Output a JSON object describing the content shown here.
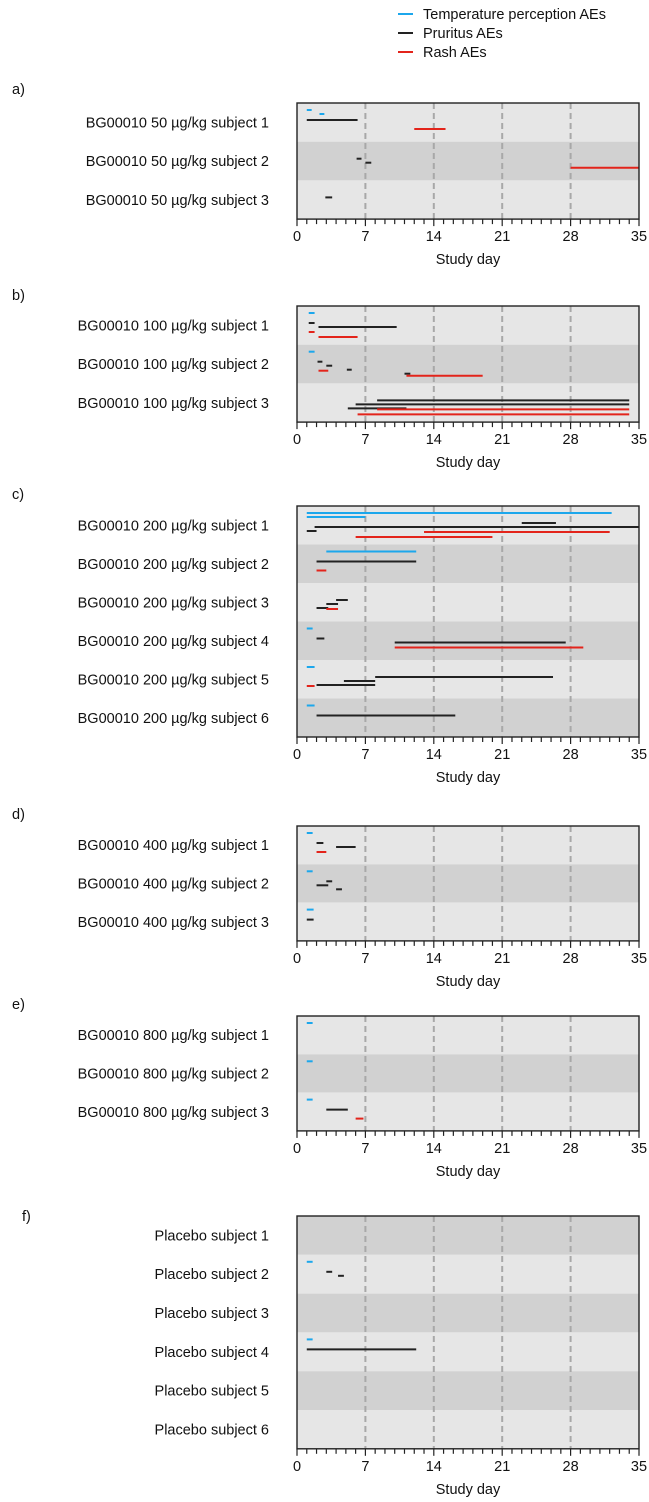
{
  "colors": {
    "temperature": "#1ca7ec",
    "pruritus": "#222222",
    "rash": "#e3241b",
    "band_light": "#e6e6e6",
    "band_dark": "#d1d1d1",
    "grid": "#a8a8a8"
  },
  "chart_data": {
    "type": "timeline",
    "legend": {
      "placement": "top-right",
      "entries": [
        {
          "key": "temperature",
          "label": "Temperature perception AEs"
        },
        {
          "key": "pruritus",
          "label": "Pruritus AEs"
        },
        {
          "key": "rash",
          "label": "Rash AEs"
        }
      ]
    },
    "xlim": [
      0,
      35
    ],
    "xticks": [
      0,
      7,
      14,
      21,
      28,
      35
    ],
    "dashed_gridlines": [
      7,
      14,
      21,
      28
    ],
    "panels": [
      {
        "label": "a)",
        "xlabel": "Study day",
        "subjects": [
          {
            "name": "BG00010 50 µg/kg subject 1",
            "events": [
              {
                "type": "temperature",
                "start": 1.0,
                "end": 1.5
              },
              {
                "type": "temperature",
                "start": 2.3,
                "end": 2.8
              },
              {
                "type": "pruritus",
                "start": 1.0,
                "end": 6.2
              },
              {
                "type": "rash",
                "start": 12.0,
                "end": 15.2
              }
            ]
          },
          {
            "name": "BG00010 50 µg/kg subject 2",
            "events": [
              {
                "type": "pruritus",
                "start": 6.1,
                "end": 6.6
              },
              {
                "type": "pruritus",
                "start": 7.0,
                "end": 7.6
              },
              {
                "type": "rash",
                "start": 28.0,
                "end": 35.0
              }
            ]
          },
          {
            "name": "BG00010 50 µg/kg subject 3",
            "events": [
              {
                "type": "pruritus",
                "start": 2.9,
                "end": 3.6
              }
            ]
          }
        ]
      },
      {
        "label": "b)",
        "xlabel": "Study day",
        "subjects": [
          {
            "name": "BG00010 100 µg/kg subject 1",
            "events": [
              {
                "type": "temperature",
                "start": 1.2,
                "end": 1.8
              },
              {
                "type": "pruritus",
                "start": 1.2,
                "end": 1.8
              },
              {
                "type": "pruritus",
                "start": 2.2,
                "end": 10.2
              },
              {
                "type": "rash",
                "start": 1.2,
                "end": 1.8
              },
              {
                "type": "rash",
                "start": 2.2,
                "end": 6.2
              }
            ]
          },
          {
            "name": "BG00010 100 µg/kg subject 2",
            "events": [
              {
                "type": "temperature",
                "start": 1.2,
                "end": 1.8
              },
              {
                "type": "pruritus",
                "start": 2.1,
                "end": 2.6
              },
              {
                "type": "pruritus",
                "start": 3.0,
                "end": 3.6
              },
              {
                "type": "pruritus",
                "start": 5.1,
                "end": 5.6
              },
              {
                "type": "pruritus",
                "start": 11.0,
                "end": 11.6
              },
              {
                "type": "rash",
                "start": 2.2,
                "end": 3.2
              },
              {
                "type": "rash",
                "start": 11.2,
                "end": 19.0
              }
            ]
          },
          {
            "name": "BG00010 100 µg/kg subject 3",
            "events": [
              {
                "type": "pruritus",
                "start": 8.2,
                "end": 34.0
              },
              {
                "type": "pruritus",
                "start": 6.0,
                "end": 34.0
              },
              {
                "type": "pruritus",
                "start": 5.2,
                "end": 11.2
              },
              {
                "type": "rash",
                "start": 8.2,
                "end": 34.0
              },
              {
                "type": "rash",
                "start": 6.2,
                "end": 34.0
              }
            ]
          }
        ]
      },
      {
        "label": "c)",
        "xlabel": "Study day",
        "subjects": [
          {
            "name": "BG00010 200 µg/kg subject 1",
            "events": [
              {
                "type": "temperature",
                "start": 1.0,
                "end": 32.2
              },
              {
                "type": "temperature",
                "start": 1.0,
                "end": 7.0
              },
              {
                "type": "pruritus",
                "start": 23.0,
                "end": 26.5
              },
              {
                "type": "pruritus",
                "start": 1.8,
                "end": 35.0
              },
              {
                "type": "pruritus",
                "start": 1.0,
                "end": 2.0
              },
              {
                "type": "rash",
                "start": 13.0,
                "end": 32.0
              },
              {
                "type": "rash",
                "start": 6.0,
                "end": 20.0
              }
            ]
          },
          {
            "name": "BG00010 200 µg/kg subject 2",
            "events": [
              {
                "type": "temperature",
                "start": 3.0,
                "end": 12.2
              },
              {
                "type": "pruritus",
                "start": 2.0,
                "end": 12.2
              },
              {
                "type": "rash",
                "start": 2.0,
                "end": 3.0
              }
            ]
          },
          {
            "name": "BG00010 200 µg/kg subject 3",
            "events": [
              {
                "type": "pruritus",
                "start": 4.0,
                "end": 5.2
              },
              {
                "type": "pruritus",
                "start": 3.0,
                "end": 4.2
              },
              {
                "type": "pruritus",
                "start": 2.0,
                "end": 3.2
              },
              {
                "type": "rash",
                "start": 3.0,
                "end": 4.2
              }
            ]
          },
          {
            "name": "BG00010 200 µg/kg subject 4",
            "events": [
              {
                "type": "temperature",
                "start": 1.0,
                "end": 1.6
              },
              {
                "type": "pruritus",
                "start": 2.0,
                "end": 2.8
              },
              {
                "type": "pruritus",
                "start": 10.0,
                "end": 27.5
              },
              {
                "type": "rash",
                "start": 10.0,
                "end": 29.3
              }
            ]
          },
          {
            "name": "BG00010 200 µg/kg subject 5",
            "events": [
              {
                "type": "temperature",
                "start": 1.0,
                "end": 1.8
              },
              {
                "type": "pruritus",
                "start": 8.0,
                "end": 26.2
              },
              {
                "type": "pruritus",
                "start": 4.8,
                "end": 8.0
              },
              {
                "type": "pruritus",
                "start": 2.0,
                "end": 8.0
              },
              {
                "type": "rash",
                "start": 1.0,
                "end": 1.8
              }
            ]
          },
          {
            "name": "BG00010 200 µg/kg subject 6",
            "events": [
              {
                "type": "temperature",
                "start": 1.0,
                "end": 1.8
              },
              {
                "type": "pruritus",
                "start": 2.0,
                "end": 16.2
              }
            ]
          }
        ]
      },
      {
        "label": "d)",
        "xlabel": "Study day",
        "subjects": [
          {
            "name": "BG00010 400 µg/kg subject 1",
            "events": [
              {
                "type": "temperature",
                "start": 1.0,
                "end": 1.6
              },
              {
                "type": "pruritus",
                "start": 2.0,
                "end": 2.7
              },
              {
                "type": "pruritus",
                "start": 4.0,
                "end": 6.0
              },
              {
                "type": "rash",
                "start": 2.0,
                "end": 3.0
              }
            ]
          },
          {
            "name": "BG00010 400 µg/kg subject 2",
            "events": [
              {
                "type": "temperature",
                "start": 1.0,
                "end": 1.6
              },
              {
                "type": "pruritus",
                "start": 3.0,
                "end": 3.6
              },
              {
                "type": "pruritus",
                "start": 2.0,
                "end": 3.2
              },
              {
                "type": "pruritus",
                "start": 4.0,
                "end": 4.6
              }
            ]
          },
          {
            "name": "BG00010 400 µg/kg subject 3",
            "events": [
              {
                "type": "temperature",
                "start": 1.0,
                "end": 1.7
              },
              {
                "type": "pruritus",
                "start": 1.0,
                "end": 1.7
              }
            ]
          }
        ]
      },
      {
        "label": "e)",
        "xlabel": "Study day",
        "subjects": [
          {
            "name": "BG00010 800 µg/kg subject 1",
            "events": [
              {
                "type": "temperature",
                "start": 1.0,
                "end": 1.6
              }
            ]
          },
          {
            "name": "BG00010 800 µg/kg subject 2",
            "events": [
              {
                "type": "temperature",
                "start": 1.0,
                "end": 1.6
              }
            ]
          },
          {
            "name": "BG00010 800 µg/kg subject 3",
            "events": [
              {
                "type": "temperature",
                "start": 1.0,
                "end": 1.6
              },
              {
                "type": "pruritus",
                "start": 3.0,
                "end": 5.2
              },
              {
                "type": "rash",
                "start": 6.0,
                "end": 6.8
              }
            ]
          }
        ]
      },
      {
        "label": "f)",
        "xlabel": "Study day",
        "subjects": [
          {
            "name": "Placebo subject 1",
            "events": []
          },
          {
            "name": "Placebo subject 2",
            "events": [
              {
                "type": "temperature",
                "start": 1.0,
                "end": 1.6
              },
              {
                "type": "pruritus",
                "start": 3.0,
                "end": 3.6
              },
              {
                "type": "pruritus",
                "start": 4.2,
                "end": 4.8
              }
            ]
          },
          {
            "name": "Placebo subject 3",
            "events": []
          },
          {
            "name": "Placebo subject 4",
            "events": [
              {
                "type": "temperature",
                "start": 1.0,
                "end": 1.6
              },
              {
                "type": "pruritus",
                "start": 1.0,
                "end": 12.2
              }
            ]
          },
          {
            "name": "Placebo subject 5",
            "events": []
          },
          {
            "name": "Placebo subject 6",
            "events": []
          }
        ]
      }
    ]
  }
}
